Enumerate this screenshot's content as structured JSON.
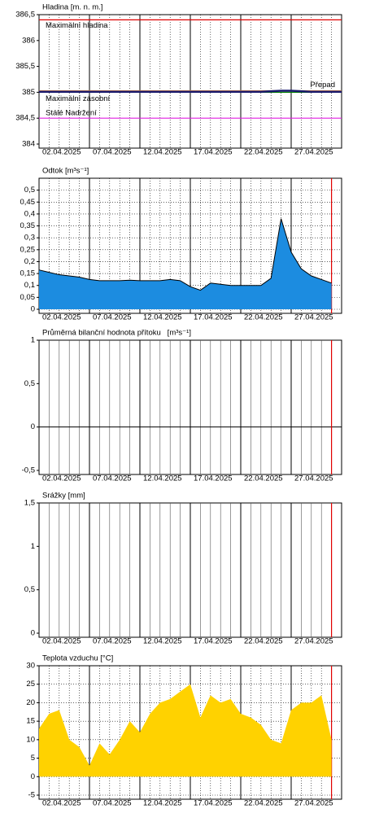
{
  "chart_data": [
    {
      "type": "line",
      "title": "Hladina [m. n. m.]",
      "xlim": [
        "2025-04-02",
        "2025-05-02"
      ],
      "xticks": [
        {
          "value": "2025-04-02",
          "label": "02.04.2025"
        },
        {
          "value": "2025-04-07",
          "label": "07.04.2025"
        },
        {
          "value": "2025-04-12",
          "label": "12.04.2025"
        },
        {
          "value": "2025-04-17",
          "label": "17.04.2025"
        },
        {
          "value": "2025-04-22",
          "label": "22.04.2025"
        },
        {
          "value": "2025-04-27",
          "label": "27.04.2025"
        }
      ],
      "ylim": [
        384,
        386.5
      ],
      "yticks": [
        384,
        {
          "value": 384.5,
          "label": "384,5"
        },
        385,
        {
          "value": 385.5,
          "label": "385,5"
        },
        386,
        {
          "value": 386.5,
          "label": "386,5"
        }
      ],
      "hgrid": false,
      "minor_grid": "dotted",
      "x": [
        "2025-04-02",
        "2025-04-03",
        "2025-04-04",
        "2025-04-05",
        "2025-04-06",
        "2025-04-07",
        "2025-04-08",
        "2025-04-09",
        "2025-04-10",
        "2025-04-11",
        "2025-04-12",
        "2025-04-13",
        "2025-04-14",
        "2025-04-15",
        "2025-04-16",
        "2025-04-17",
        "2025-04-18",
        "2025-04-19",
        "2025-04-20",
        "2025-04-21",
        "2025-04-22",
        "2025-04-23",
        "2025-04-24",
        "2025-04-25",
        "2025-04-26",
        "2025-04-27",
        "2025-04-28",
        "2025-04-29",
        "2025-04-30",
        "2025-05-01",
        "2025-05-02"
      ],
      "values": [
        385.01,
        385.01,
        385.01,
        385.01,
        385.01,
        385.01,
        385.01,
        385.01,
        385.01,
        385.01,
        385.01,
        385.01,
        385.01,
        385.01,
        385.01,
        385.01,
        385.01,
        385.01,
        385.01,
        385.01,
        385.01,
        385.01,
        385.01,
        385.02,
        385.03,
        385.03,
        385.02,
        385.01,
        385.01,
        385.01,
        385.01
      ],
      "color": "#1a1a6e",
      "reference_lines": [
        {
          "name": "Maximální hladina",
          "value": 386.4,
          "color": "#e00000"
        },
        {
          "name": "Přepad",
          "value": 385.03,
          "color": "#ffa040"
        },
        {
          "name": "Maximální zásobní",
          "value": 385,
          "color": "#008000"
        },
        {
          "name": "Stálé Nadržení",
          "value": 384.5,
          "color": "#e020e0"
        }
      ]
    },
    {
      "type": "area",
      "title": "Odtok [m³s⁻¹]",
      "xlim": [
        "2025-04-02",
        "2025-05-02"
      ],
      "xticks": [
        {
          "value": "2025-04-02",
          "label": "02.04.2025"
        },
        {
          "value": "2025-04-07",
          "label": "07.04.2025"
        },
        {
          "value": "2025-04-12",
          "label": "12.04.2025"
        },
        {
          "value": "2025-04-17",
          "label": "17.04.2025"
        },
        {
          "value": "2025-04-22",
          "label": "22.04.2025"
        },
        {
          "value": "2025-04-27",
          "label": "27.04.2025"
        }
      ],
      "ylim": [
        0,
        0.55
      ],
      "yticks": [
        0,
        {
          "value": 0.05,
          "label": "0,05"
        },
        {
          "value": 0.1,
          "label": "0,1"
        },
        {
          "value": 0.15,
          "label": "0,15"
        },
        {
          "value": 0.2,
          "label": "0,2"
        },
        {
          "value": 0.25,
          "label": "0,25"
        },
        {
          "value": 0.3,
          "label": "0,3"
        },
        {
          "value": 0.35,
          "label": "0,35"
        },
        {
          "value": 0.4,
          "label": "0,4"
        },
        {
          "value": 0.45,
          "label": "0,45"
        },
        {
          "value": 0.5,
          "label": "0,5"
        }
      ],
      "hgrid": true,
      "minor_grid": "dotted",
      "marker_line": {
        "x": "2025-05-01",
        "color": "#e00000"
      },
      "x": [
        "2025-04-02",
        "2025-04-03",
        "2025-04-04",
        "2025-04-05",
        "2025-04-06",
        "2025-04-07",
        "2025-04-08",
        "2025-04-09",
        "2025-04-10",
        "2025-04-11",
        "2025-04-12",
        "2025-04-13",
        "2025-04-14",
        "2025-04-15",
        "2025-04-16",
        "2025-04-17",
        "2025-04-18",
        "2025-04-19",
        "2025-04-20",
        "2025-04-21",
        "2025-04-22",
        "2025-04-23",
        "2025-04-24",
        "2025-04-25",
        "2025-04-26",
        "2025-04-27",
        "2025-04-28",
        "2025-04-29",
        "2025-04-30",
        "2025-05-01"
      ],
      "values": [
        0.165,
        0.155,
        0.145,
        0.14,
        0.135,
        0.125,
        0.12,
        0.12,
        0.12,
        0.122,
        0.12,
        0.12,
        0.12,
        0.125,
        0.12,
        0.095,
        0.08,
        0.11,
        0.105,
        0.1,
        0.1,
        0.1,
        0.1,
        0.13,
        0.38,
        0.24,
        0.17,
        0.14,
        0.125,
        0.11
      ],
      "color": "#1c8ce0"
    },
    {
      "type": "line",
      "title": "Průměrná bilanční hodnota přítoku   [m³s⁻¹]",
      "xlim": [
        "2025-04-02",
        "2025-05-02"
      ],
      "xticks": [
        {
          "value": "2025-04-02",
          "label": "02.04.2025"
        },
        {
          "value": "2025-04-07",
          "label": "07.04.2025"
        },
        {
          "value": "2025-04-12",
          "label": "12.04.2025"
        },
        {
          "value": "2025-04-17",
          "label": "17.04.2025"
        },
        {
          "value": "2025-04-22",
          "label": "22.04.2025"
        },
        {
          "value": "2025-04-27",
          "label": "27.04.2025"
        }
      ],
      "ylim": [
        -0.5,
        1
      ],
      "yticks": [
        {
          "value": -0.5,
          "label": "-0,5"
        },
        0,
        {
          "value": 0.5,
          "label": "0,5"
        },
        1
      ],
      "hgrid": false,
      "zero_line": true,
      "minor_grid": "solid",
      "marker_line": {
        "x": "2025-05-01",
        "color": "#e00000"
      }
    },
    {
      "type": "bar",
      "title": "Srážky [mm]",
      "xlim": [
        "2025-04-02",
        "2025-05-02"
      ],
      "xticks": [
        {
          "value": "2025-04-02",
          "label": "02.04.2025"
        },
        {
          "value": "2025-04-07",
          "label": "07.04.2025"
        },
        {
          "value": "2025-04-12",
          "label": "12.04.2025"
        },
        {
          "value": "2025-04-17",
          "label": "17.04.2025"
        },
        {
          "value": "2025-04-22",
          "label": "22.04.2025"
        },
        {
          "value": "2025-04-27",
          "label": "27.04.2025"
        }
      ],
      "ylim": [
        0,
        1.5
      ],
      "yticks": [
        0,
        {
          "value": 0.5,
          "label": "0,5"
        },
        1,
        {
          "value": 1.5,
          "label": "1,5"
        }
      ],
      "hgrid": false,
      "minor_grid": "solid",
      "marker_line": {
        "x": "2025-05-01",
        "color": "#e00000"
      }
    },
    {
      "type": "area",
      "title": "Teplota vzduchu [°C]",
      "xlim": [
        "2025-04-02",
        "2025-05-02"
      ],
      "xticks": [
        {
          "value": "2025-04-02",
          "label": "02.04.2025"
        },
        {
          "value": "2025-04-07",
          "label": "07.04.2025"
        },
        {
          "value": "2025-04-12",
          "label": "12.04.2025"
        },
        {
          "value": "2025-04-17",
          "label": "17.04.2025"
        },
        {
          "value": "2025-04-22",
          "label": "22.04.2025"
        },
        {
          "value": "2025-04-27",
          "label": "27.04.2025"
        }
      ],
      "ylim": [
        -5,
        30
      ],
      "yticks": [
        -5,
        0,
        5,
        10,
        15,
        20,
        25,
        30
      ],
      "hgrid": true,
      "minor_grid": "dotted",
      "marker_line": {
        "x": "2025-05-01",
        "color": "#e00000"
      },
      "x": [
        "2025-04-02",
        "2025-04-03",
        "2025-04-04",
        "2025-04-05",
        "2025-04-06",
        "2025-04-07",
        "2025-04-08",
        "2025-04-09",
        "2025-04-10",
        "2025-04-11",
        "2025-04-12",
        "2025-04-13",
        "2025-04-14",
        "2025-04-15",
        "2025-04-16",
        "2025-04-17",
        "2025-04-18",
        "2025-04-19",
        "2025-04-20",
        "2025-04-21",
        "2025-04-22",
        "2025-04-23",
        "2025-04-24",
        "2025-04-25",
        "2025-04-26",
        "2025-04-27",
        "2025-04-28",
        "2025-04-29",
        "2025-04-30",
        "2025-05-01"
      ],
      "values": [
        13,
        17,
        18,
        10,
        8,
        3,
        9,
        6,
        10,
        15,
        12,
        17,
        20,
        21,
        23,
        25,
        16,
        22,
        20,
        21,
        17,
        16,
        14,
        10,
        9,
        18,
        20,
        20,
        22,
        10
      ],
      "color": "#ffd200"
    }
  ]
}
